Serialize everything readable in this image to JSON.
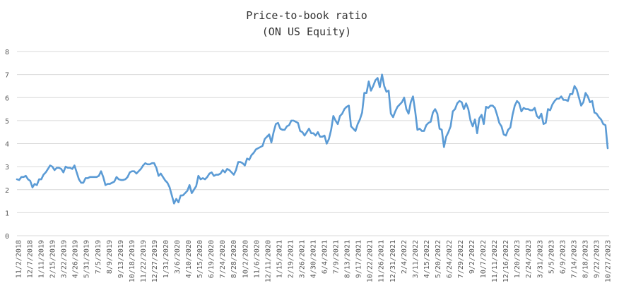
{
  "chart_data": {
    "type": "line",
    "title": "Price-to-book ratio",
    "subtitle": "(ON US Equity)",
    "xlabel": "",
    "ylabel": "",
    "ylim": [
      0,
      8
    ],
    "yticks": [
      0,
      1,
      2,
      3,
      4,
      5,
      6,
      7,
      8
    ],
    "grid": true,
    "legend": "none",
    "x_tick_labels": [
      "11/2/2018",
      "12/7/2018",
      "1/11/2019",
      "2/15/2019",
      "3/22/2019",
      "4/26/2019",
      "5/31/2019",
      "7/5/2019",
      "8/9/2019",
      "9/13/2019",
      "10/18/2019",
      "11/22/2019",
      "12/27/2019",
      "1/31/2020",
      "3/6/2020",
      "4/10/2020",
      "5/15/2020",
      "6/19/2020",
      "7/24/2020",
      "8/28/2020",
      "10/2/2020",
      "11/6/2020",
      "12/11/2020",
      "1/15/2021",
      "2/19/2021",
      "3/26/2021",
      "4/30/2021",
      "6/4/2021",
      "7/9/2021",
      "8/13/2021",
      "9/17/2021",
      "10/22/2021",
      "11/26/2021",
      "12/31/2021",
      "2/4/2022",
      "3/11/2022",
      "4/15/2022",
      "5/20/2022",
      "6/24/2022",
      "7/29/2022",
      "9/2/2022",
      "10/7/2022",
      "11/11/2022",
      "12/16/2022",
      "1/20/2023",
      "2/24/2023",
      "3/31/2023",
      "5/5/2023",
      "6/9/2023",
      "7/14/2023",
      "8/18/2023",
      "9/22/2023",
      "10/27/2023"
    ],
    "series": [
      {
        "name": "Price-to-book ratio",
        "color": "#5b9bd5",
        "values": [
          2.45,
          2.42,
          2.55,
          2.55,
          2.6,
          2.45,
          2.38,
          2.1,
          2.25,
          2.2,
          2.45,
          2.45,
          2.65,
          2.75,
          2.9,
          3.05,
          3.0,
          2.85,
          2.95,
          2.95,
          2.9,
          2.75,
          3.0,
          2.95,
          2.95,
          2.9,
          3.05,
          2.75,
          2.45,
          2.3,
          2.3,
          2.5,
          2.5,
          2.55,
          2.55,
          2.55,
          2.55,
          2.6,
          2.8,
          2.55,
          2.2,
          2.25,
          2.25,
          2.3,
          2.35,
          2.55,
          2.45,
          2.42,
          2.42,
          2.45,
          2.55,
          2.75,
          2.8,
          2.8,
          2.7,
          2.8,
          2.9,
          3.05,
          3.15,
          3.1,
          3.1,
          3.15,
          3.15,
          2.95,
          2.6,
          2.7,
          2.55,
          2.4,
          2.3,
          2.1,
          1.75,
          1.4,
          1.6,
          1.45,
          1.75,
          1.75,
          1.85,
          1.95,
          2.2,
          1.85,
          2.0,
          2.15,
          2.6,
          2.45,
          2.5,
          2.45,
          2.55,
          2.7,
          2.75,
          2.6,
          2.65,
          2.65,
          2.7,
          2.85,
          2.75,
          2.9,
          2.85,
          2.75,
          2.65,
          2.85,
          3.2,
          3.2,
          3.15,
          3.05,
          3.35,
          3.3,
          3.5,
          3.6,
          3.75,
          3.8,
          3.85,
          3.9,
          4.2,
          4.3,
          4.4,
          4.05,
          4.5,
          4.85,
          4.9,
          4.65,
          4.6,
          4.6,
          4.75,
          4.8,
          5.0,
          5.0,
          4.95,
          4.9,
          4.55,
          4.5,
          4.35,
          4.5,
          4.65,
          4.45,
          4.45,
          4.35,
          4.5,
          4.3,
          4.3,
          4.35,
          4.0,
          4.2,
          4.6,
          5.2,
          5.0,
          4.85,
          5.2,
          5.3,
          5.5,
          5.6,
          5.65,
          4.75,
          4.65,
          4.55,
          4.85,
          5.05,
          5.35,
          6.2,
          6.2,
          6.7,
          6.3,
          6.5,
          6.75,
          6.85,
          6.45,
          7.0,
          6.5,
          6.25,
          6.3,
          5.3,
          5.15,
          5.4,
          5.6,
          5.7,
          5.8,
          6.0,
          5.5,
          5.3,
          5.8,
          6.05,
          5.4,
          4.6,
          4.65,
          4.55,
          4.55,
          4.8,
          4.9,
          4.95,
          5.35,
          5.5,
          5.3,
          4.65,
          4.6,
          3.85,
          4.3,
          4.5,
          4.75,
          5.4,
          5.5,
          5.75,
          5.85,
          5.8,
          5.5,
          5.75,
          5.5,
          5.0,
          4.75,
          5.05,
          4.45,
          5.1,
          5.25,
          4.85,
          5.6,
          5.55,
          5.65,
          5.65,
          5.55,
          5.25,
          4.9,
          4.75,
          4.4,
          4.35,
          4.6,
          4.7,
          5.25,
          5.65,
          5.85,
          5.75,
          5.4,
          5.55,
          5.5,
          5.5,
          5.45,
          5.45,
          5.55,
          5.2,
          5.1,
          5.3,
          4.85,
          4.9,
          5.5,
          5.45,
          5.7,
          5.85,
          5.95,
          5.95,
          6.05,
          5.9,
          5.9,
          5.85,
          6.15,
          6.15,
          6.5,
          6.35,
          6.0,
          5.65,
          5.8,
          6.2,
          6.05,
          5.8,
          5.85,
          5.35,
          5.3,
          5.15,
          5.05,
          4.85,
          4.8,
          3.8
        ]
      }
    ]
  }
}
